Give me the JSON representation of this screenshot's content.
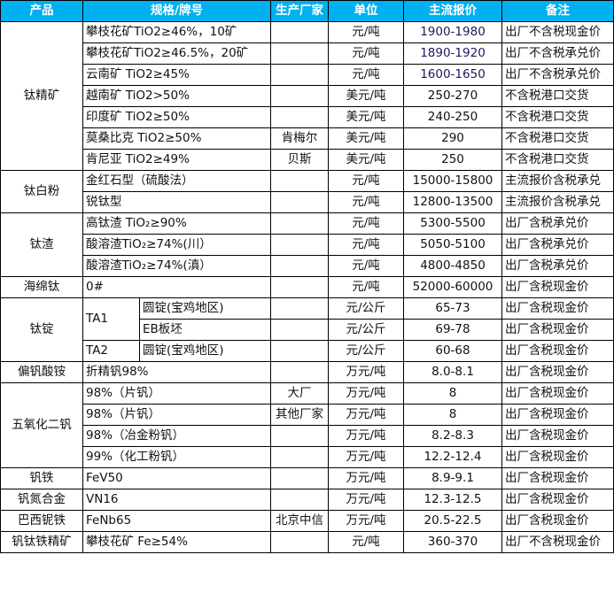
{
  "header": [
    "产品",
    "规格/牌号",
    "生产厂家",
    "单位",
    "主流报价",
    "备注"
  ],
  "colors": {
    "header_bg": "#00B0F0",
    "header_text": "#ffffff",
    "border": "#000000"
  },
  "groups": [
    {
      "product": "钛精矿",
      "rows": [
        {
          "spec": "攀枝花矿TiO2≥46%，10矿",
          "maker": "",
          "unit": "元/吨",
          "price": "1900-1980",
          "note": "出厂不含税现金价"
        },
        {
          "spec": "攀枝花矿TiO2≥46.5%，20矿",
          "maker": "",
          "unit": "元/吨",
          "price": "1890-1920",
          "note": "出厂不含税承兑价"
        },
        {
          "spec": "云南矿 TiO2≥45%",
          "maker": "",
          "unit": "元/吨",
          "price": "1600-1650",
          "note": "出厂不含税承兑价"
        },
        {
          "spec": "越南矿 TiO2>50%",
          "maker": "",
          "unit": "美元/吨",
          "price": "250-270",
          "note": "不含税港口交货"
        },
        {
          "spec": "印度矿 TiO2≥50%",
          "maker": "",
          "unit": "美元/吨",
          "price": "240-250",
          "note": "不含税港口交货"
        },
        {
          "spec": "莫桑比克 TiO2≥50%",
          "maker": "肯梅尔",
          "unit": "美元/吨",
          "price": "290",
          "note": "不含税港口交货"
        },
        {
          "spec": "肯尼亚 TiO2≥49%",
          "maker": "贝斯",
          "unit": "美元/吨",
          "price": "250",
          "note": "不含税港口交货"
        }
      ]
    },
    {
      "product": "钛白粉",
      "rows": [
        {
          "spec": "金红石型（硫酸法）",
          "maker": "",
          "unit": "元/吨",
          "price": "15000-15800",
          "note": "主流报价含税承兑"
        },
        {
          "spec": "锐钛型",
          "maker": "",
          "unit": "元/吨",
          "price": "12800-13500",
          "note": "主流报价含税承兑"
        }
      ]
    },
    {
      "product": "钛渣",
      "rows": [
        {
          "spec": "高钛渣 TiO₂≥90%",
          "maker": "",
          "unit": "元/吨",
          "price": "5300-5500",
          "note": "出厂含税承兑价"
        },
        {
          "spec": "酸溶渣TiO₂≥74%(川）",
          "maker": "",
          "unit": "元/吨",
          "price": "5050-5100",
          "note": "出厂含税承兑价"
        },
        {
          "spec": "酸溶渣TiO₂≥74%(滇）",
          "maker": "",
          "unit": "元/吨",
          "price": "4800-4850",
          "note": "出厂含税承兑价"
        }
      ]
    },
    {
      "product": "海绵钛",
      "rows": [
        {
          "spec": "0#",
          "maker": "",
          "unit": "元/吨",
          "price": "52000-60000",
          "note": "出厂含税现金价"
        }
      ]
    },
    {
      "product": "钛锭",
      "rows": [
        {
          "spec": "TA1",
          "sub": "圆锭(宝鸡地区)",
          "maker": "",
          "unit": "元/公斤",
          "price": "65-73",
          "note": "出厂含税现金价"
        },
        {
          "sub": "EB板坯",
          "maker": "",
          "unit": "元/公斤",
          "price": "69-78",
          "note": "出厂含税现金价"
        },
        {
          "spec": "TA2",
          "sub": "圆锭(宝鸡地区)",
          "maker": "",
          "unit": "元/公斤",
          "price": "60-68",
          "note": "出厂含税现金价"
        }
      ]
    },
    {
      "product": "偏钒酸铵",
      "rows": [
        {
          "spec": "折精钒98%",
          "maker": "",
          "unit": "万元/吨",
          "price": "8.0-8.1",
          "note": "出厂含税现金价"
        }
      ]
    },
    {
      "product": "五氧化二钒",
      "rows": [
        {
          "spec": "98%（片钒）",
          "maker": "大厂",
          "unit": "万元/吨",
          "price": "8",
          "note": "出厂含税现金价"
        },
        {
          "spec": "98%（片钒）",
          "maker": "其他厂家",
          "unit": "万元/吨",
          "price": "8",
          "note": "出厂含税现金价"
        },
        {
          "spec": "98%（冶金粉钒）",
          "maker": "",
          "unit": "万元/吨",
          "price": "8.2-8.3",
          "note": "出厂含税现金价"
        },
        {
          "spec": "99%（化工粉钒）",
          "maker": "",
          "unit": "万元/吨",
          "price": "12.2-12.4",
          "note": "出厂含税现金价"
        }
      ]
    },
    {
      "product": "钒铁",
      "rows": [
        {
          "spec": "FeV50",
          "maker": "",
          "unit": "万元/吨",
          "price": "8.9-9.1",
          "note": "出厂含税现金价"
        }
      ]
    },
    {
      "product": "钒氮合金",
      "rows": [
        {
          "spec": "VN16",
          "maker": "",
          "unit": "万元/吨",
          "price": "12.3-12.5",
          "note": "出厂含税现金价"
        }
      ]
    },
    {
      "product": "巴西铌铁",
      "rows": [
        {
          "spec": "FeNb65",
          "maker": "北京中信",
          "unit": "万元/吨",
          "price": "20.5-22.5",
          "note": "出厂含税现金价"
        }
      ]
    },
    {
      "product": "钒钛铁精矿",
      "rows": [
        {
          "spec": "攀枝花矿 Fe≥54%",
          "maker": "",
          "unit": "元/吨",
          "price": "360-370",
          "note": "出厂不含税现金价"
        }
      ]
    }
  ]
}
